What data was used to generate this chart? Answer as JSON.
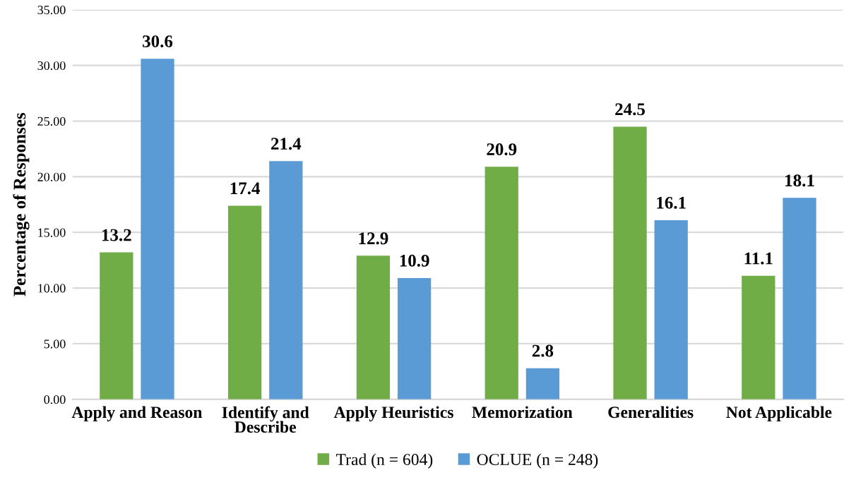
{
  "chart_data": {
    "type": "bar",
    "ylabel": "Percentage of Responses",
    "categories": [
      "Apply and Reason",
      "Identify and\nDescribe",
      "Apply Heuristics",
      "Memorization",
      "Generalities",
      "Not Applicable"
    ],
    "series": [
      {
        "name": "Trad (n = 604)",
        "color": "#70ad47",
        "values": [
          13.2,
          17.4,
          12.9,
          20.9,
          24.5,
          11.1
        ]
      },
      {
        "name": "OCLUE (n = 248)",
        "color": "#5b9bd5",
        "values": [
          30.6,
          21.4,
          10.9,
          2.8,
          16.1,
          18.1
        ]
      }
    ],
    "ylim": [
      0,
      35
    ],
    "yticks": [
      {
        "value": 0,
        "label": "0.00"
      },
      {
        "value": 5,
        "label": "5.00"
      },
      {
        "value": 10,
        "label": "10.00"
      },
      {
        "value": 15,
        "label": "15.00"
      },
      {
        "value": 20,
        "label": "20.00"
      },
      {
        "value": 25,
        "label": "25.00"
      },
      {
        "value": 30,
        "label": "30.00"
      },
      {
        "value": 35,
        "label": "35.00"
      }
    ],
    "grid": "y",
    "legend": "bottom",
    "data_labels": true
  }
}
